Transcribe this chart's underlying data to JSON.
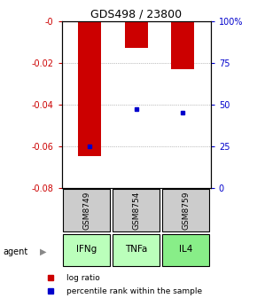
{
  "title": "GDS498 / 23800",
  "samples": [
    "GSM8749",
    "GSM8754",
    "GSM8759"
  ],
  "agents": [
    "IFNg",
    "TNFa",
    "IL4"
  ],
  "log_ratios": [
    -0.065,
    -0.013,
    -0.023
  ],
  "percentile_ranks": [
    25,
    47,
    45
  ],
  "ylim_left": [
    -0.08,
    0.0
  ],
  "ylim_right": [
    0,
    100
  ],
  "yticks_left": [
    0,
    -0.02,
    -0.04,
    -0.06,
    -0.08
  ],
  "yticks_right": [
    0,
    25,
    50,
    75,
    100
  ],
  "ytick_labels_left": [
    "-0",
    "-0.02",
    "-0.04",
    "-0.06",
    "-0.08"
  ],
  "ytick_labels_right": [
    "0",
    "25",
    "50",
    "75",
    "100%"
  ],
  "bar_color": "#cc0000",
  "dot_color": "#0000cc",
  "sample_box_color": "#cccccc",
  "agent_colors": [
    "#bbffbb",
    "#bbffbb",
    "#88ee88"
  ],
  "left_axis_color": "#cc0000",
  "right_axis_color": "#0000cc",
  "grid_linestyle": "dotted"
}
